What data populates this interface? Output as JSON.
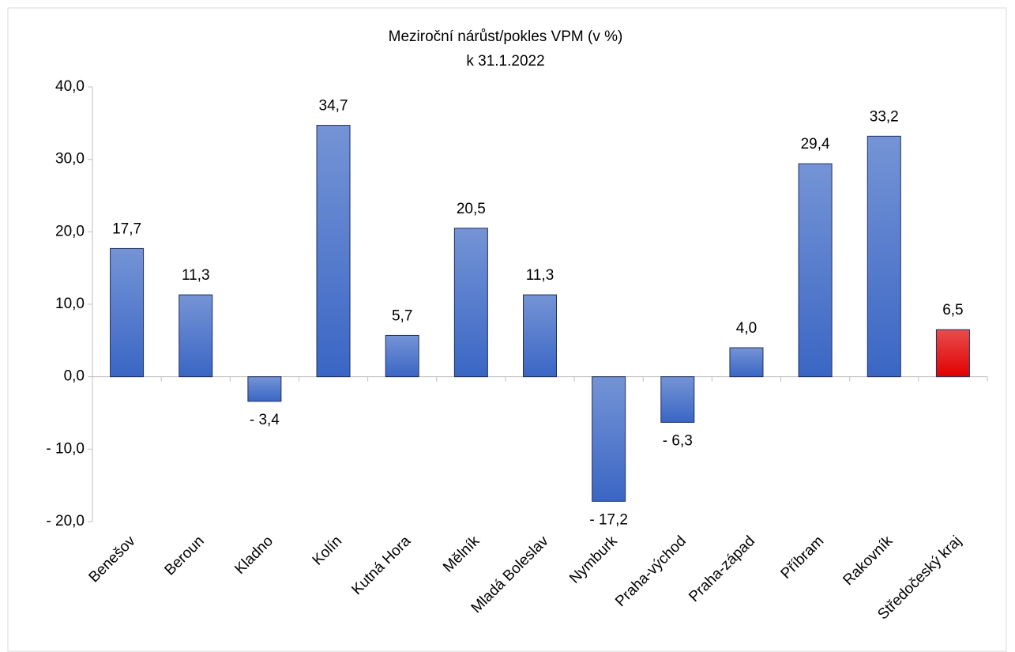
{
  "chart_data": {
    "type": "bar",
    "title": "Meziroční nárůst/pokles VPM (v %)",
    "subtitle": "k 31.1.2022",
    "categories": [
      "Benešov",
      "Beroun",
      "Kladno",
      "Kolín",
      "Kutná Hora",
      "Mělník",
      "Mladá Boleslav",
      "Nymburk",
      "Praha-východ",
      "Praha-západ",
      "Příbram",
      "Rakovník",
      "Středočeský kraj"
    ],
    "values": [
      17.7,
      11.3,
      -3.4,
      34.7,
      5.7,
      20.5,
      11.3,
      -17.2,
      -6.3,
      4.0,
      29.4,
      33.2,
      6.5
    ],
    "value_labels": [
      "17,7",
      "11,3",
      "- 3,4",
      "34,7",
      "5,7",
      "20,5",
      "11,3",
      "- 17,2",
      "- 6,3",
      "4,0",
      "29,4",
      "33,2",
      "6,5"
    ],
    "colors": [
      "#3a66c4",
      "#3a66c4",
      "#3a66c4",
      "#3a66c4",
      "#3a66c4",
      "#3a66c4",
      "#3a66c4",
      "#3a66c4",
      "#3a66c4",
      "#3a66c4",
      "#3a66c4",
      "#3a66c4",
      "#e00000"
    ],
    "ylim": [
      -20,
      40
    ],
    "yticks": [
      {
        "value": -20,
        "label": "- 20,0"
      },
      {
        "value": -10,
        "label": "- 10,0"
      },
      {
        "value": 0,
        "label": "0,0"
      },
      {
        "value": 10,
        "label": "10,0"
      },
      {
        "value": 20,
        "label": "20,0"
      },
      {
        "value": 30,
        "label": "30,0"
      },
      {
        "value": 40,
        "label": "40,0"
      }
    ],
    "grid": false
  }
}
